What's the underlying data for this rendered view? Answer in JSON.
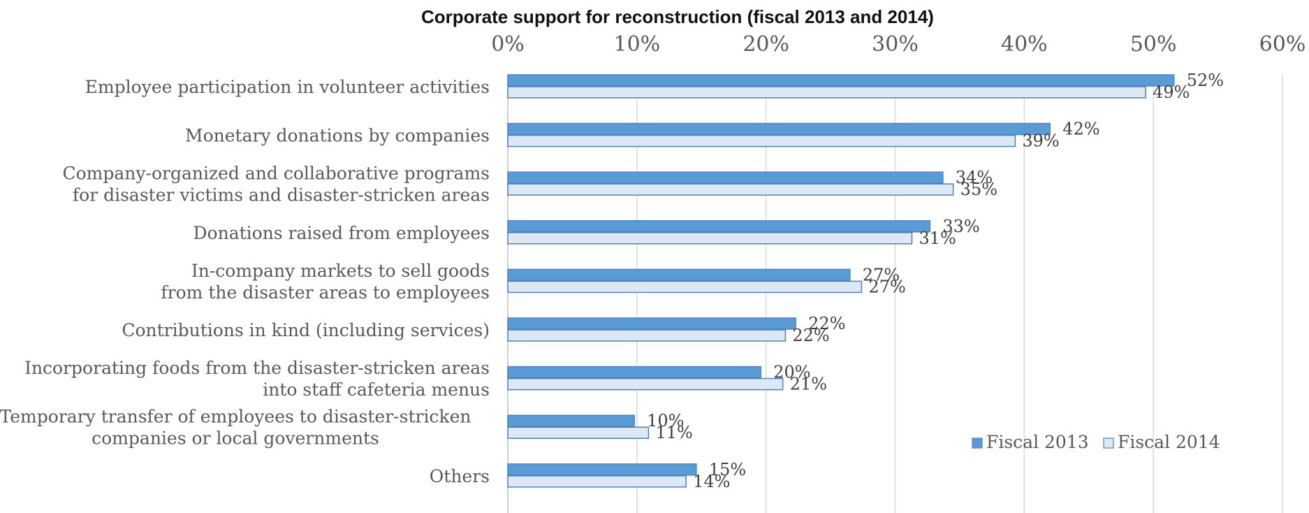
{
  "chart_data": {
    "type": "bar",
    "orientation": "horizontal",
    "title": "Corporate support for reconstruction (fiscal 2013 and 2014)",
    "xlim": [
      0,
      60
    ],
    "x_ticks": [
      "0%",
      "10%",
      "20%",
      "30%",
      "40%",
      "50%",
      "60%"
    ],
    "x_tick_values": [
      0,
      10,
      20,
      30,
      40,
      50,
      60
    ],
    "x_axis_position": "top",
    "grid": true,
    "categories": [
      [
        "Employee participation in volunteer activities"
      ],
      [
        "Monetary donations by companies"
      ],
      [
        "Company-organized and collaborative programs",
        "for disaster victims and disaster-stricken areas"
      ],
      [
        "Donations raised from employees"
      ],
      [
        "In-company markets to sell goods",
        "from the disaster areas to employees"
      ],
      [
        "Contributions in kind (including services)"
      ],
      [
        "Incorporating foods from the disaster-stricken areas",
        "into staff cafeteria menus"
      ],
      [
        "Temporary transfer of employees to disaster-stricken",
        "companies or local governments"
      ],
      [
        "Others"
      ]
    ],
    "series": [
      {
        "name": "Fiscal 2013",
        "values": [
          51.6,
          42.0,
          33.7,
          32.7,
          26.5,
          22.3,
          19.6,
          9.8,
          14.6
        ],
        "labels": [
          "52%",
          "42%",
          "34%",
          "33%",
          "27%",
          "22%",
          "20%",
          "10%",
          "15%"
        ],
        "color": "#5b9bd5",
        "stroke": "#4a86c5"
      },
      {
        "name": "Fiscal 2014",
        "values": [
          49.4,
          39.3,
          34.5,
          31.3,
          27.4,
          21.5,
          21.3,
          10.9,
          13.8
        ],
        "labels": [
          "49%",
          "39%",
          "35%",
          "31%",
          "27%",
          "22%",
          "21%",
          "11%",
          "14%"
        ],
        "color": "#dde8f5",
        "stroke": "#4f81bd"
      }
    ],
    "legend": {
      "position": "bottom-right",
      "entries": [
        "Fiscal 2013",
        "Fiscal 2014"
      ]
    },
    "grid_color": "#d9d9d9"
  }
}
